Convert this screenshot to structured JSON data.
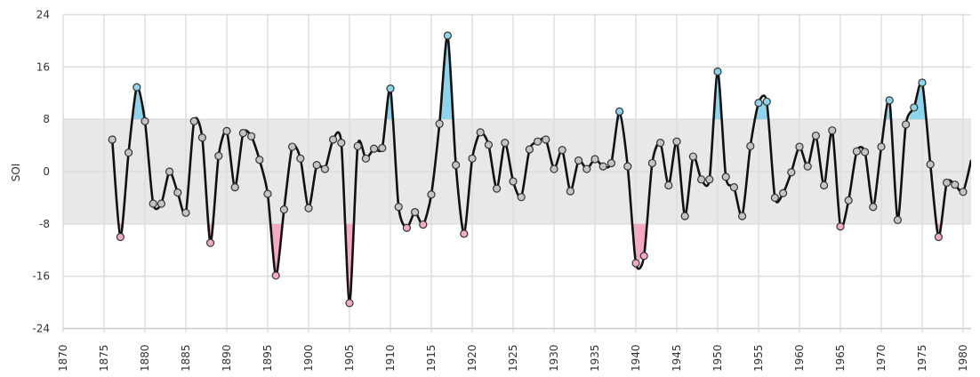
{
  "chart_data": {
    "type": "line",
    "title": "",
    "xlabel": "",
    "ylabel": "SOI",
    "xlim": [
      1870,
      1981
    ],
    "ylim": [
      -24,
      24
    ],
    "grid": true,
    "legend": null,
    "y_ticks": [
      24,
      16,
      8,
      0,
      -8,
      -16,
      -24
    ],
    "x_ticks": [
      1870,
      1875,
      1880,
      1885,
      1890,
      1895,
      1900,
      1905,
      1910,
      1915,
      1920,
      1925,
      1930,
      1935,
      1940,
      1945,
      1950,
      1955,
      1960,
      1965,
      1970,
      1975,
      1980
    ],
    "band": {
      "from": -8,
      "to": 8,
      "color": "#E8E8E8",
      "description": "neutral range shading"
    },
    "thresholds": {
      "upper": 8,
      "lower": -8
    },
    "colors": {
      "line": "#111111",
      "marker_default": "#C4C4C4",
      "marker_high": "#8ED4EA",
      "marker_low": "#F4A9C5",
      "fill_high": "#8ED4EA",
      "fill_low": "#F4A9C5",
      "grid": "#DDDDDD"
    },
    "series": [
      {
        "name": "SOI",
        "x": [
          1876,
          1877,
          1878,
          1879,
          1880,
          1881,
          1882,
          1883,
          1884,
          1885,
          1886,
          1887,
          1888,
          1889,
          1890,
          1891,
          1892,
          1893,
          1894,
          1895,
          1896,
          1897,
          1898,
          1899,
          1900,
          1901,
          1902,
          1903,
          1904,
          1905,
          1906,
          1907,
          1908,
          1909,
          1910,
          1911,
          1912,
          1913,
          1914,
          1915,
          1916,
          1917,
          1918,
          1919,
          1920,
          1921,
          1922,
          1923,
          1924,
          1925,
          1926,
          1927,
          1928,
          1929,
          1930,
          1931,
          1932,
          1933,
          1934,
          1935,
          1936,
          1937,
          1938,
          1939,
          1940,
          1941,
          1942,
          1943,
          1944,
          1945,
          1946,
          1947,
          1948,
          1949,
          1950,
          1951,
          1952,
          1953,
          1954,
          1955,
          1956,
          1957,
          1958,
          1959,
          1960,
          1961,
          1962,
          1963,
          1964,
          1965,
          1966,
          1967,
          1968,
          1969,
          1970,
          1971,
          1972,
          1973,
          1974,
          1975,
          1976,
          1977,
          1978,
          1979,
          1980,
          1981
        ],
        "values": [
          4.9,
          -10.0,
          2.9,
          12.9,
          7.7,
          -4.9,
          -4.9,
          0.0,
          -3.2,
          -6.3,
          7.7,
          5.2,
          -10.9,
          2.4,
          6.2,
          -2.4,
          5.9,
          5.4,
          1.8,
          -3.4,
          -15.9,
          -5.8,
          3.8,
          2.0,
          -5.6,
          1.0,
          0.4,
          4.9,
          4.4,
          -20.1,
          3.9,
          2.0,
          3.5,
          3.6,
          12.7,
          -5.4,
          -8.6,
          -6.2,
          -8.1,
          -3.5,
          7.3,
          20.8,
          1.0,
          -9.5,
          2.0,
          6.0,
          4.1,
          -2.6,
          4.4,
          -1.5,
          -3.9,
          3.4,
          4.6,
          4.9,
          0.4,
          3.3,
          -3.0,
          1.7,
          0.4,
          1.9,
          0.8,
          1.3,
          9.2,
          0.8,
          -14.0,
          -12.9,
          1.3,
          4.4,
          -2.1,
          4.6,
          -6.8,
          2.3,
          -1.2,
          -1.2,
          15.3,
          -0.8,
          -2.4,
          -6.8,
          3.9,
          10.5,
          10.7,
          -4.0,
          -3.3,
          -0.1,
          3.8,
          0.8,
          5.5,
          -2.1,
          6.3,
          -8.4,
          -4.4,
          3.1,
          3.0,
          -5.4,
          3.8,
          10.9,
          -7.4,
          7.2,
          9.8,
          13.6,
          1.1,
          -10.0,
          -1.7,
          -2.0,
          -3.1,
          1.8
        ]
      }
    ]
  }
}
